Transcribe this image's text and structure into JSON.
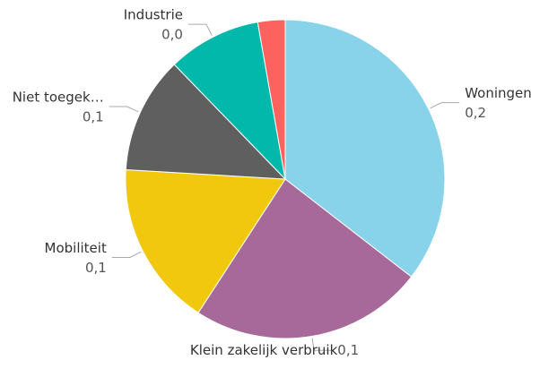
{
  "chart_data": {
    "type": "pie",
    "categories": [
      "Woningen",
      "Klein zakelijk verbruik",
      "Mobiliteit",
      "Niet toegek…",
      "Industrie",
      null
    ],
    "values": [
      0.18,
      0.12,
      0.085,
      0.06,
      0.048,
      0.014
    ],
    "value_labels": [
      "0,2",
      "0,1",
      "0,1",
      "0,1",
      "0,0",
      null
    ],
    "colors": [
      "#89d3ea",
      "#a66999",
      "#f2c80f",
      "#5f5f5f",
      "#01b8aa",
      "#fd625e"
    ]
  }
}
